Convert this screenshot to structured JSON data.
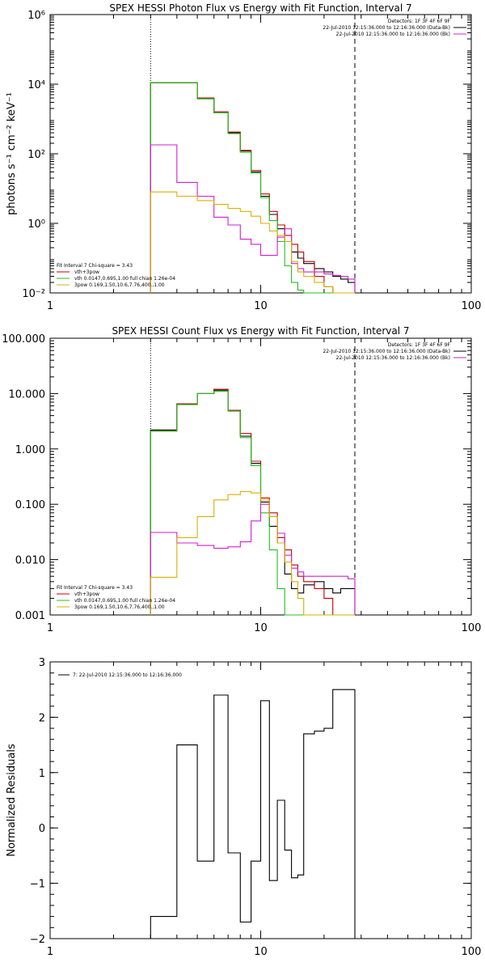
{
  "chart_data": [
    {
      "type": "line",
      "title": "SPEX HESSI Photon Flux vs Energy with Fit Function, Interval 7",
      "ylabel": "photons s⁻¹ cm⁻² keV⁻¹",
      "xlabel": "",
      "xscale": "log",
      "yscale": "log",
      "xlim": [
        1,
        100
      ],
      "ylim": [
        0.01,
        1000000
      ],
      "x_ticks": [
        1,
        10,
        100
      ],
      "y_ticks": [
        0.01,
        1,
        100,
        10000,
        1000000
      ],
      "x_tick_labels": [
        "1",
        "10",
        "100"
      ],
      "y_tick_labels": [
        "10⁻²",
        "10⁰",
        "10²",
        "10⁴",
        "10⁶"
      ],
      "vlines": [
        {
          "x": 3,
          "style": "dotted"
        },
        {
          "x": 28,
          "style": "dashed"
        }
      ],
      "legend_top_right": [
        {
          "text": "Detectors: 1F 3F 4F 6F 9F",
          "color": ""
        },
        {
          "text": "22-Jul-2010 12:15:36.000 to 12:16:36.000 (Data-Bk)",
          "color": "#000000"
        },
        {
          "text": "22-Jul-2010 12:15:36.000 to 12:16:36.000 (Bk)",
          "color": "#d020d0"
        }
      ],
      "legend_bottom_left": [
        {
          "text": "Fit Interval 7   Chi-square = 3.43",
          "color": ""
        },
        {
          "text": "vth+3pow",
          "color": "#c00000"
        },
        {
          "text": "vth 0.0147,0.695,1.00   full chian 1.26e-04",
          "color": "#20c020"
        },
        {
          "text": "3pow 0.169,1.50,10.6,7.76,400.,1.00",
          "color": "#d8b000"
        }
      ],
      "bin_edges": [
        3,
        4,
        5,
        6,
        7,
        8,
        9,
        10,
        11,
        12,
        13,
        14,
        15,
        16,
        18,
        20,
        22,
        24,
        26,
        28
      ],
      "series": [
        {
          "name": "Data-Bk",
          "color": "#000000",
          "values": [
            11000,
            11000,
            3800,
            1500,
            400,
            120,
            30,
            6,
            1.8,
            0.7,
            0.3,
            0.15,
            0.1,
            0.07,
            0.05,
            0.04,
            0.03,
            0.025,
            0.02
          ]
        },
        {
          "name": "vth+3pow",
          "color": "#c00000",
          "values": [
            11000,
            11000,
            4000,
            1600,
            420,
            125,
            33,
            7,
            2.2,
            0.9,
            0.45,
            0.25,
            0.15,
            0.08,
            0.03,
            0.015,
            0.01,
            0.01,
            0.01
          ]
        },
        {
          "name": "vth",
          "color": "#20c020",
          "values": [
            11000,
            11000,
            3800,
            1500,
            380,
            110,
            28,
            5.5,
            1.2,
            0.3,
            0.06,
            0.02,
            0.012,
            0.01,
            0.01,
            0.01,
            0.01,
            0.01,
            0.01
          ]
        },
        {
          "name": "Bk",
          "color": "#d020d0",
          "values": [
            180,
            15,
            6,
            1.5,
            0.9,
            0.35,
            0.25,
            0.12,
            0.12,
            0.4,
            0.7,
            0.07,
            0.05,
            0.04,
            0.04,
            0.035,
            0.032,
            0.03,
            0.025
          ]
        },
        {
          "name": "3pow",
          "color": "#d8b000",
          "values": [
            8,
            6,
            4.5,
            3.5,
            2.7,
            2.2,
            1.6,
            1,
            0.6,
            0.45,
            0.3,
            0.08,
            0.04,
            0.03,
            0.02,
            0.015,
            0.01,
            0.01,
            0.01
          ]
        }
      ]
    },
    {
      "type": "line",
      "title": "SPEX HESSI Count Flux vs Energy with Fit Function, Interval 7",
      "ylabel": "",
      "xlabel": "",
      "xscale": "log",
      "yscale": "log",
      "xlim": [
        1,
        100
      ],
      "ylim": [
        0.001,
        100
      ],
      "x_ticks": [
        1,
        10,
        100
      ],
      "y_ticks": [
        0.001,
        0.01,
        0.1,
        1,
        10,
        100
      ],
      "x_tick_labels": [
        "1",
        "10",
        "100"
      ],
      "y_tick_labels": [
        "0.001",
        "0.010",
        "0.100",
        "1.000",
        "10.000",
        "100.000"
      ],
      "vlines": [
        {
          "x": 3,
          "style": "dotted"
        },
        {
          "x": 28,
          "style": "dashed"
        }
      ],
      "legend_top_right": [
        {
          "text": "Detectors: 1F 3F 4F 6F 9F",
          "color": ""
        },
        {
          "text": "22-Jul-2010 12:15:36.000 to 12:16:36.000 (Data-Bk)",
          "color": "#000000"
        },
        {
          "text": "22-Jul-2010 12:15:36.000 to 12:16:36.000 (Bk)",
          "color": "#d020d0"
        }
      ],
      "legend_bottom_left": [
        {
          "text": "Fit Interval 7   Chi-square = 3.43",
          "color": ""
        },
        {
          "text": "vth+3pow",
          "color": "#c00000"
        },
        {
          "text": "vth 0.0147,0.695,1.00   full chian 1.26e-04",
          "color": "#20c020"
        },
        {
          "text": "3pow 0.169,1.50,10.6,7.76,400.,1.00",
          "color": "#d8b000"
        }
      ],
      "bin_edges": [
        3,
        4,
        5,
        6,
        7,
        8,
        9,
        10,
        11,
        12,
        13,
        14,
        15,
        16,
        18,
        20,
        22,
        24,
        26,
        28
      ],
      "series": [
        {
          "name": "Data-Bk",
          "color": "#000000",
          "values": [
            2.2,
            6.5,
            10,
            11.5,
            5,
            1.7,
            0.55,
            0.11,
            0.04,
            0.02,
            0.0055,
            0.003,
            0.0025,
            0.0035,
            0.004,
            0.003,
            0.0025,
            0.003,
            0.003
          ]
        },
        {
          "name": "vth+3pow",
          "color": "#c00000",
          "values": [
            2.1,
            6.5,
            10,
            12,
            5,
            1.9,
            0.6,
            0.13,
            0.07,
            0.025,
            0.015,
            0.008,
            0.005,
            0.004,
            0.003,
            0.002,
            0.001,
            0.001,
            0.001
          ]
        },
        {
          "name": "vth",
          "color": "#20c020",
          "values": [
            2.1,
            6.3,
            10,
            11,
            4.8,
            1.6,
            0.5,
            0.07,
            0.015,
            0.003,
            0.001,
            0.001,
            0.001,
            0.001,
            0.001,
            0.001,
            0.001,
            0.001,
            0.001
          ]
        },
        {
          "name": "Bk",
          "color": "#d020d0",
          "values": [
            0.031,
            0.02,
            0.018,
            0.016,
            0.017,
            0.021,
            0.05,
            0.1,
            0.06,
            0.03,
            0.012,
            0.007,
            0.006,
            0.005,
            0.005,
            0.005,
            0.005,
            0.005,
            0.0045
          ]
        },
        {
          "name": "3pow",
          "color": "#d8b000",
          "values": [
            0.0048,
            0.025,
            0.06,
            0.12,
            0.15,
            0.17,
            0.16,
            0.12,
            0.06,
            0.02,
            0.009,
            0.004,
            0.002,
            0.001,
            0.001,
            0.001,
            0.001,
            0.001,
            0.001
          ]
        }
      ]
    },
    {
      "type": "line",
      "title": "",
      "ylabel": "Normalized Residuals",
      "xlabel": "",
      "xscale": "log",
      "yscale": "linear",
      "xlim": [
        1,
        100
      ],
      "ylim": [
        -2,
        3
      ],
      "x_ticks": [
        1,
        10,
        100
      ],
      "y_ticks": [
        -2,
        -1,
        0,
        1,
        2,
        3
      ],
      "x_tick_labels": [
        "1",
        "10",
        "100"
      ],
      "y_tick_labels": [
        "−2",
        "−1",
        "0",
        "1",
        "2",
        "3"
      ],
      "legend_top_left": [
        {
          "text": "7: 22-Jul-2010 12:15:36.000 to 12:16:36.000",
          "color": "#000000"
        }
      ],
      "bin_edges": [
        3,
        4,
        5,
        6,
        7,
        8,
        9,
        10,
        11,
        12,
        13,
        14,
        15,
        16,
        18,
        20,
        22,
        24,
        26,
        28
      ],
      "series": [
        {
          "name": "",
          "color": "#000000",
          "values": [
            -1.6,
            1.5,
            -0.6,
            2.4,
            -0.45,
            -1.7,
            -0.6,
            2.3,
            -0.95,
            0.5,
            -0.4,
            -0.9,
            -0.85,
            1.7,
            1.75,
            1.8,
            2.5,
            2.5,
            2.5
          ]
        }
      ]
    }
  ]
}
